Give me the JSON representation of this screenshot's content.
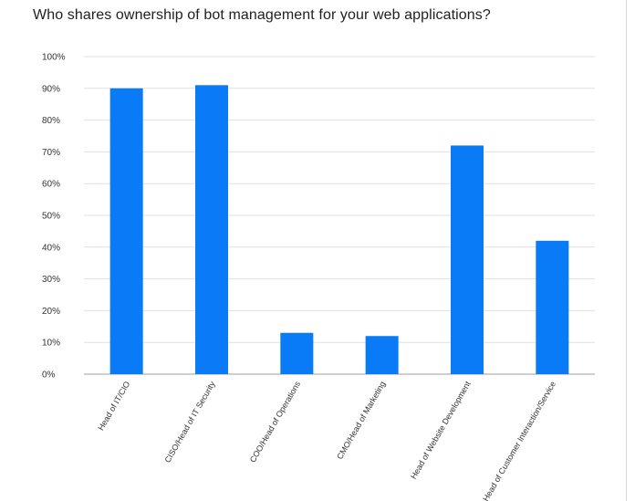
{
  "chart_data": {
    "type": "bar",
    "title": "Who shares ownership of bot management for your web applications?",
    "categories": [
      "Head of IT/CIO",
      "CISO/Head of IT Security",
      "COO/Head of Operations",
      "CMO/Head of Marketing",
      "Head of Website Development",
      "Head of Customer Interaction/Service"
    ],
    "values": [
      90,
      91,
      13,
      12,
      72,
      42
    ],
    "ylim": [
      0,
      100
    ],
    "yticks": [
      0,
      10,
      20,
      30,
      40,
      50,
      60,
      70,
      80,
      90,
      100
    ],
    "ytick_labels": [
      "0%",
      "10%",
      "20%",
      "30%",
      "40%",
      "50%",
      "60%",
      "70%",
      "80%",
      "90%",
      "100%"
    ],
    "grid": true,
    "bar_color": "#0a7bf7"
  }
}
